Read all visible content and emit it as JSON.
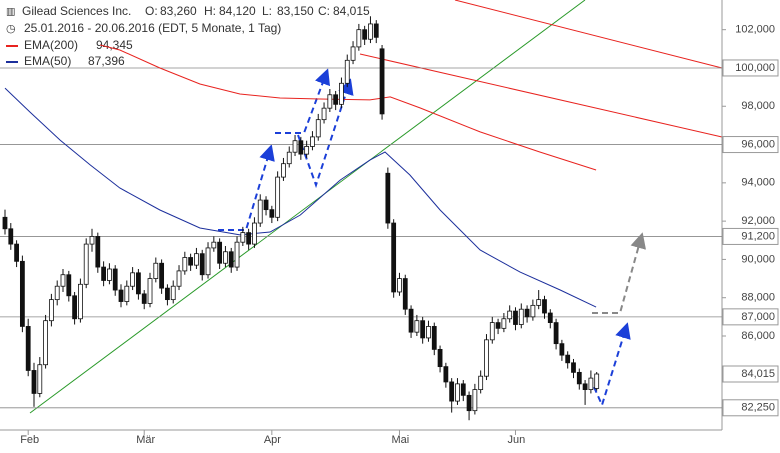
{
  "chart_data": {
    "type": "candlestick",
    "title": "Gilead Sciences Inc.",
    "quote": [
      {
        "label": "O:",
        "value": "83,260"
      },
      {
        "label": "H:",
        "value": "84,120"
      },
      {
        "label": "L:",
        "value": "83,150"
      },
      {
        "label": "C:",
        "value": "84,015"
      }
    ],
    "subtitle": "25.01.2016 - 20.06.2016 (EDT, 5 Monate, 1 Tag)",
    "candle_color": "#111111",
    "xlim": [
      -0.86,
      123.6
    ],
    "ylim": [
      81.09,
      103.55
    ],
    "xticks": [
      {
        "value": 4,
        "label": "Feb"
      },
      {
        "value": 24,
        "label": "Mär"
      },
      {
        "value": 46,
        "label": "Apr"
      },
      {
        "value": 68,
        "label": "Mai"
      },
      {
        "value": 88,
        "label": "Jun"
      }
    ],
    "yticks": [
      {
        "value": 86,
        "label": "86,000"
      },
      {
        "value": 88,
        "label": "88,000"
      },
      {
        "value": 90,
        "label": "90,000"
      },
      {
        "value": 92,
        "label": "92,000"
      },
      {
        "value": 94,
        "label": "94,000"
      },
      {
        "value": 98,
        "label": "98,000"
      },
      {
        "value": 102,
        "label": "102,000"
      }
    ],
    "price_lines": [
      {
        "value": 100,
        "label": "100,000"
      },
      {
        "value": 96,
        "label": "96,000"
      },
      {
        "value": 91.2,
        "label": "91,200"
      },
      {
        "value": 87,
        "label": "87,000"
      },
      {
        "value": 82.25,
        "label": "82,250"
      }
    ],
    "last_price": {
      "value": 84.015,
      "label": "84,015"
    },
    "ohlc": [
      [
        92.2,
        92.6,
        91.3,
        91.6
      ],
      [
        91.6,
        91.9,
        90.5,
        90.8
      ],
      [
        90.8,
        91.0,
        89.6,
        89.9
      ],
      [
        89.9,
        90.2,
        86.2,
        86.5
      ],
      [
        86.5,
        86.9,
        83.9,
        84.2
      ],
      [
        84.2,
        84.6,
        82.3,
        83.0
      ],
      [
        83.0,
        84.9,
        82.8,
        84.5
      ],
      [
        84.5,
        87.1,
        84.3,
        86.8
      ],
      [
        86.8,
        88.2,
        86.5,
        87.9
      ],
      [
        87.9,
        88.9,
        87.6,
        88.6
      ],
      [
        88.6,
        89.5,
        88.3,
        89.2
      ],
      [
        89.2,
        89.4,
        87.8,
        88.1
      ],
      [
        88.1,
        88.3,
        86.6,
        86.9
      ],
      [
        86.9,
        89.0,
        86.7,
        88.7
      ],
      [
        88.7,
        91.1,
        88.5,
        90.8
      ],
      [
        90.8,
        91.6,
        90.4,
        91.2
      ],
      [
        91.2,
        91.4,
        89.3,
        89.6
      ],
      [
        89.6,
        89.9,
        88.6,
        88.9
      ],
      [
        88.9,
        89.8,
        88.7,
        89.5
      ],
      [
        89.5,
        89.7,
        88.1,
        88.4
      ],
      [
        88.4,
        88.7,
        87.5,
        87.8
      ],
      [
        87.8,
        88.9,
        87.6,
        88.6
      ],
      [
        88.6,
        89.6,
        88.4,
        89.3
      ],
      [
        89.3,
        89.5,
        87.9,
        88.2
      ],
      [
        88.2,
        88.4,
        87.4,
        87.7
      ],
      [
        87.7,
        89.3,
        87.5,
        89.0
      ],
      [
        89.0,
        90.1,
        88.8,
        89.8
      ],
      [
        89.8,
        90.0,
        88.2,
        88.5
      ],
      [
        88.5,
        88.7,
        87.6,
        87.9
      ],
      [
        87.9,
        88.9,
        87.7,
        88.6
      ],
      [
        88.6,
        89.7,
        88.4,
        89.4
      ],
      [
        89.4,
        90.4,
        89.2,
        90.1
      ],
      [
        90.1,
        90.3,
        89.4,
        89.7
      ],
      [
        89.7,
        90.6,
        89.5,
        90.3
      ],
      [
        90.3,
        90.5,
        88.9,
        89.2
      ],
      [
        89.2,
        90.9,
        89.0,
        90.6
      ],
      [
        90.6,
        91.2,
        90.4,
        90.9
      ],
      [
        90.9,
        91.1,
        89.5,
        89.8
      ],
      [
        89.8,
        90.7,
        89.6,
        90.4
      ],
      [
        90.4,
        90.6,
        89.3,
        89.6
      ],
      [
        89.6,
        91.2,
        89.4,
        90.9
      ],
      [
        90.9,
        91.7,
        90.7,
        91.4
      ],
      [
        91.4,
        91.6,
        90.5,
        90.8
      ],
      [
        90.8,
        92.2,
        90.6,
        91.9
      ],
      [
        91.9,
        93.4,
        91.7,
        93.1
      ],
      [
        93.1,
        93.3,
        92.3,
        92.6
      ],
      [
        92.6,
        92.8,
        91.9,
        92.2
      ],
      [
        92.2,
        94.6,
        92.0,
        94.3
      ],
      [
        94.3,
        95.3,
        94.1,
        95.0
      ],
      [
        95.0,
        95.9,
        94.8,
        95.6
      ],
      [
        95.6,
        96.5,
        95.4,
        96.2
      ],
      [
        96.2,
        96.4,
        95.2,
        95.5
      ],
      [
        95.5,
        96.2,
        95.3,
        95.9
      ],
      [
        95.9,
        96.7,
        95.7,
        96.4
      ],
      [
        96.4,
        97.6,
        96.2,
        97.3
      ],
      [
        97.3,
        98.2,
        97.1,
        97.9
      ],
      [
        97.9,
        98.9,
        97.7,
        98.6
      ],
      [
        98.6,
        98.8,
        97.8,
        98.1
      ],
      [
        98.1,
        99.5,
        97.9,
        99.2
      ],
      [
        99.2,
        100.7,
        99.0,
        100.4
      ],
      [
        100.4,
        101.4,
        100.2,
        101.1
      ],
      [
        101.1,
        102.3,
        100.9,
        102.0
      ],
      [
        102.0,
        102.2,
        101.2,
        101.5
      ],
      [
        101.5,
        102.7,
        101.3,
        102.3
      ],
      [
        102.3,
        102.5,
        101.3,
        101.6
      ],
      [
        101.0,
        101.2,
        97.3,
        97.6
      ],
      [
        94.5,
        94.8,
        91.6,
        91.9
      ],
      [
        91.9,
        92.1,
        88.0,
        88.3
      ],
      [
        88.3,
        89.3,
        88.1,
        89.0
      ],
      [
        89.0,
        89.2,
        87.1,
        87.4
      ],
      [
        87.4,
        87.6,
        85.9,
        86.2
      ],
      [
        86.2,
        87.1,
        86.0,
        86.8
      ],
      [
        86.8,
        87.0,
        85.6,
        85.9
      ],
      [
        85.9,
        86.8,
        85.7,
        86.5
      ],
      [
        86.5,
        86.7,
        85.0,
        85.3
      ],
      [
        85.3,
        85.5,
        84.1,
        84.4
      ],
      [
        84.4,
        84.6,
        83.3,
        83.6
      ],
      [
        83.6,
        83.8,
        82.0,
        82.6
      ],
      [
        82.6,
        83.8,
        82.4,
        83.5
      ],
      [
        83.5,
        83.7,
        82.6,
        82.9
      ],
      [
        82.9,
        83.1,
        81.6,
        82.1
      ],
      [
        82.1,
        83.5,
        81.9,
        83.2
      ],
      [
        83.2,
        84.2,
        83.0,
        83.9
      ],
      [
        83.9,
        86.1,
        83.7,
        85.8
      ],
      [
        85.8,
        87.0,
        85.6,
        86.7
      ],
      [
        86.7,
        86.9,
        86.1,
        86.4
      ],
      [
        86.4,
        87.2,
        86.2,
        86.9
      ],
      [
        86.9,
        87.6,
        86.7,
        87.3
      ],
      [
        87.3,
        87.5,
        86.3,
        86.6
      ],
      [
        86.6,
        87.7,
        86.4,
        87.4
      ],
      [
        87.4,
        87.6,
        86.7,
        87.0
      ],
      [
        87.0,
        87.9,
        86.8,
        87.6
      ],
      [
        87.6,
        88.4,
        87.4,
        87.9
      ],
      [
        87.9,
        88.1,
        86.9,
        87.2
      ],
      [
        87.2,
        87.4,
        86.4,
        86.7
      ],
      [
        86.7,
        86.9,
        85.3,
        85.6
      ],
      [
        85.6,
        85.8,
        84.7,
        85.0
      ],
      [
        85.0,
        85.2,
        84.3,
        84.6
      ],
      [
        84.6,
        84.8,
        83.8,
        84.1
      ],
      [
        84.1,
        84.3,
        83.2,
        83.5
      ],
      [
        83.5,
        83.7,
        82.4,
        83.2
      ],
      [
        83.2,
        84.2,
        83.0,
        83.8
      ],
      [
        83.26,
        84.12,
        83.15,
        84.015
      ]
    ],
    "series": [
      {
        "name": "EMA(200)",
        "last_label": "94,345",
        "color": "#e8231f",
        "x": [
          16.4,
          19.8,
          26.7,
          33.6,
          40.5,
          47.4,
          54.3,
          62.9,
          66.4,
          71.6,
          81.9,
          92.2,
          101.9
        ],
        "values": [
          101.2,
          100.94,
          100.0,
          99.16,
          98.64,
          98.43,
          98.38,
          98.33,
          98.49,
          97.91,
          96.66,
          95.61,
          94.67
        ]
      },
      {
        "name": "EMA(50)",
        "last_label": "87,396",
        "color": "#1c2f9c",
        "x": [
          0,
          4.3,
          9.5,
          14.7,
          19.8,
          26.7,
          33.6,
          40.5,
          45.7,
          50.9,
          57.8,
          62.9,
          65.5,
          69.8,
          75.0,
          81.9,
          88.8,
          95.7,
          101.9
        ],
        "values": [
          98.95,
          97.7,
          96.23,
          94.93,
          93.73,
          92.58,
          91.64,
          91.28,
          91.43,
          92.32,
          94.15,
          95.19,
          95.61,
          94.41,
          92.58,
          90.49,
          89.34,
          88.4,
          87.51
        ]
      }
    ]
  }
}
